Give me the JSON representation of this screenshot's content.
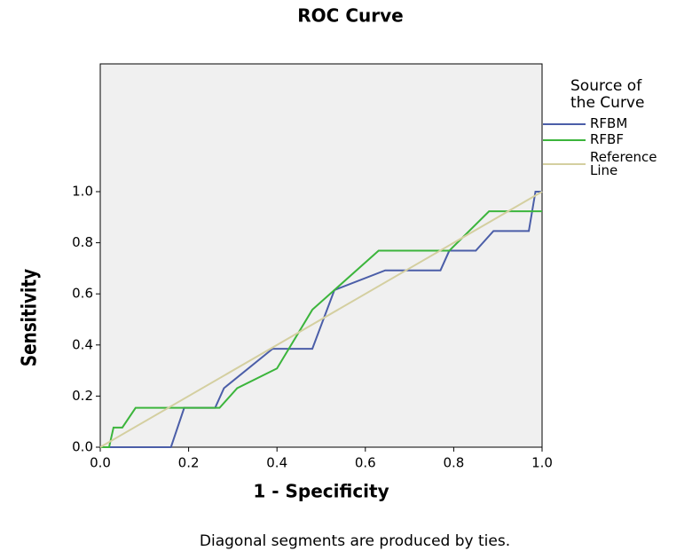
{
  "chart_data": {
    "type": "line",
    "title": "ROC Curve",
    "x_label": "1 - Specificity",
    "y_label": "Sensitivity",
    "footnote": "Diagonal segments are produced by ties.",
    "legend_title": "Source of the Curve",
    "xlim": [
      0,
      1
    ],
    "ylim": [
      0,
      1.5
    ],
    "xticks": [
      {
        "value": 0,
        "label": "0.0"
      },
      0.2,
      0.4,
      0.6,
      0.8,
      {
        "value": 1,
        "label": "1.0"
      }
    ],
    "yticks": [
      {
        "value": 0,
        "label": "0.0"
      },
      0.2,
      0.4,
      0.6,
      0.8,
      {
        "value": 1,
        "label": "1.0"
      }
    ],
    "series": [
      {
        "name": "RFBM",
        "color": "#4b5ea8",
        "x": [
          0,
          0.16,
          0.19,
          0.26,
          0.28,
          0.39,
          0.48,
          0.53,
          0.645,
          0.77,
          0.79,
          0.85,
          0.89,
          0.97,
          0.985,
          1.0
        ],
        "values": [
          0,
          0,
          0.154,
          0.154,
          0.231,
          0.385,
          0.385,
          0.615,
          0.692,
          0.692,
          0.769,
          0.769,
          0.846,
          0.846,
          1.0,
          1.0
        ]
      },
      {
        "name": "RFBF",
        "color": "#3cb53c",
        "x": [
          0,
          0.02,
          0.03,
          0.05,
          0.08,
          0.27,
          0.31,
          0.4,
          0.48,
          0.53,
          0.63,
          0.79,
          0.88,
          1.0
        ],
        "values": [
          0,
          0,
          0.077,
          0.077,
          0.154,
          0.154,
          0.231,
          0.308,
          0.538,
          0.615,
          0.769,
          0.769,
          0.923,
          0.923
        ]
      },
      {
        "name": "Reference Line",
        "color": "#d4cfa0",
        "x": [
          0,
          1
        ],
        "values": [
          0,
          1
        ]
      }
    ]
  }
}
